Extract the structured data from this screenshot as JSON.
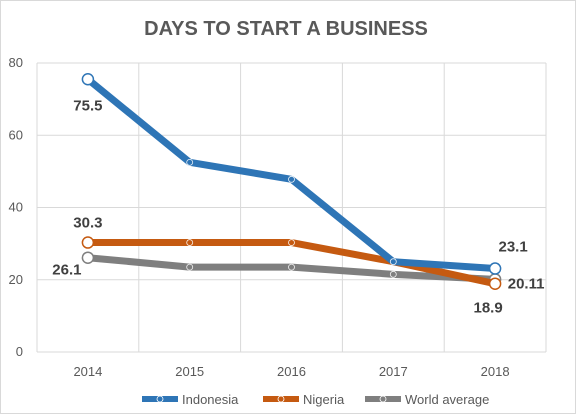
{
  "chart_data": {
    "type": "line",
    "title": "DAYS TO START A BUSINESS",
    "categories": [
      "2014",
      "2015",
      "2016",
      "2017",
      "2018"
    ],
    "y_ticks": [
      "0",
      "20",
      "40",
      "60",
      "80"
    ],
    "ylim": [
      0,
      80
    ],
    "grid": true,
    "legend_position": "bottom",
    "series": [
      {
        "name": "Indonesia",
        "color": "#2E75B6",
        "values": [
          75.5,
          52.5,
          47.8,
          25.0,
          23.1
        ]
      },
      {
        "name": "Nigeria",
        "color": "#C55A11",
        "values": [
          30.3,
          30.3,
          30.3,
          25.0,
          18.9
        ]
      },
      {
        "name": "World average",
        "color": "#7F7F7F",
        "values": [
          26.1,
          23.5,
          23.5,
          21.5,
          20.11
        ]
      }
    ],
    "data_labels": [
      {
        "series": 0,
        "index": 0,
        "text": "75.5"
      },
      {
        "series": 1,
        "index": 0,
        "text": "30.3"
      },
      {
        "series": 2,
        "index": 0,
        "text": "26.1"
      },
      {
        "series": 0,
        "index": 4,
        "text": "23.1"
      },
      {
        "series": 2,
        "index": 4,
        "text": "20.11"
      },
      {
        "series": 1,
        "index": 4,
        "text": "18.9"
      }
    ]
  }
}
